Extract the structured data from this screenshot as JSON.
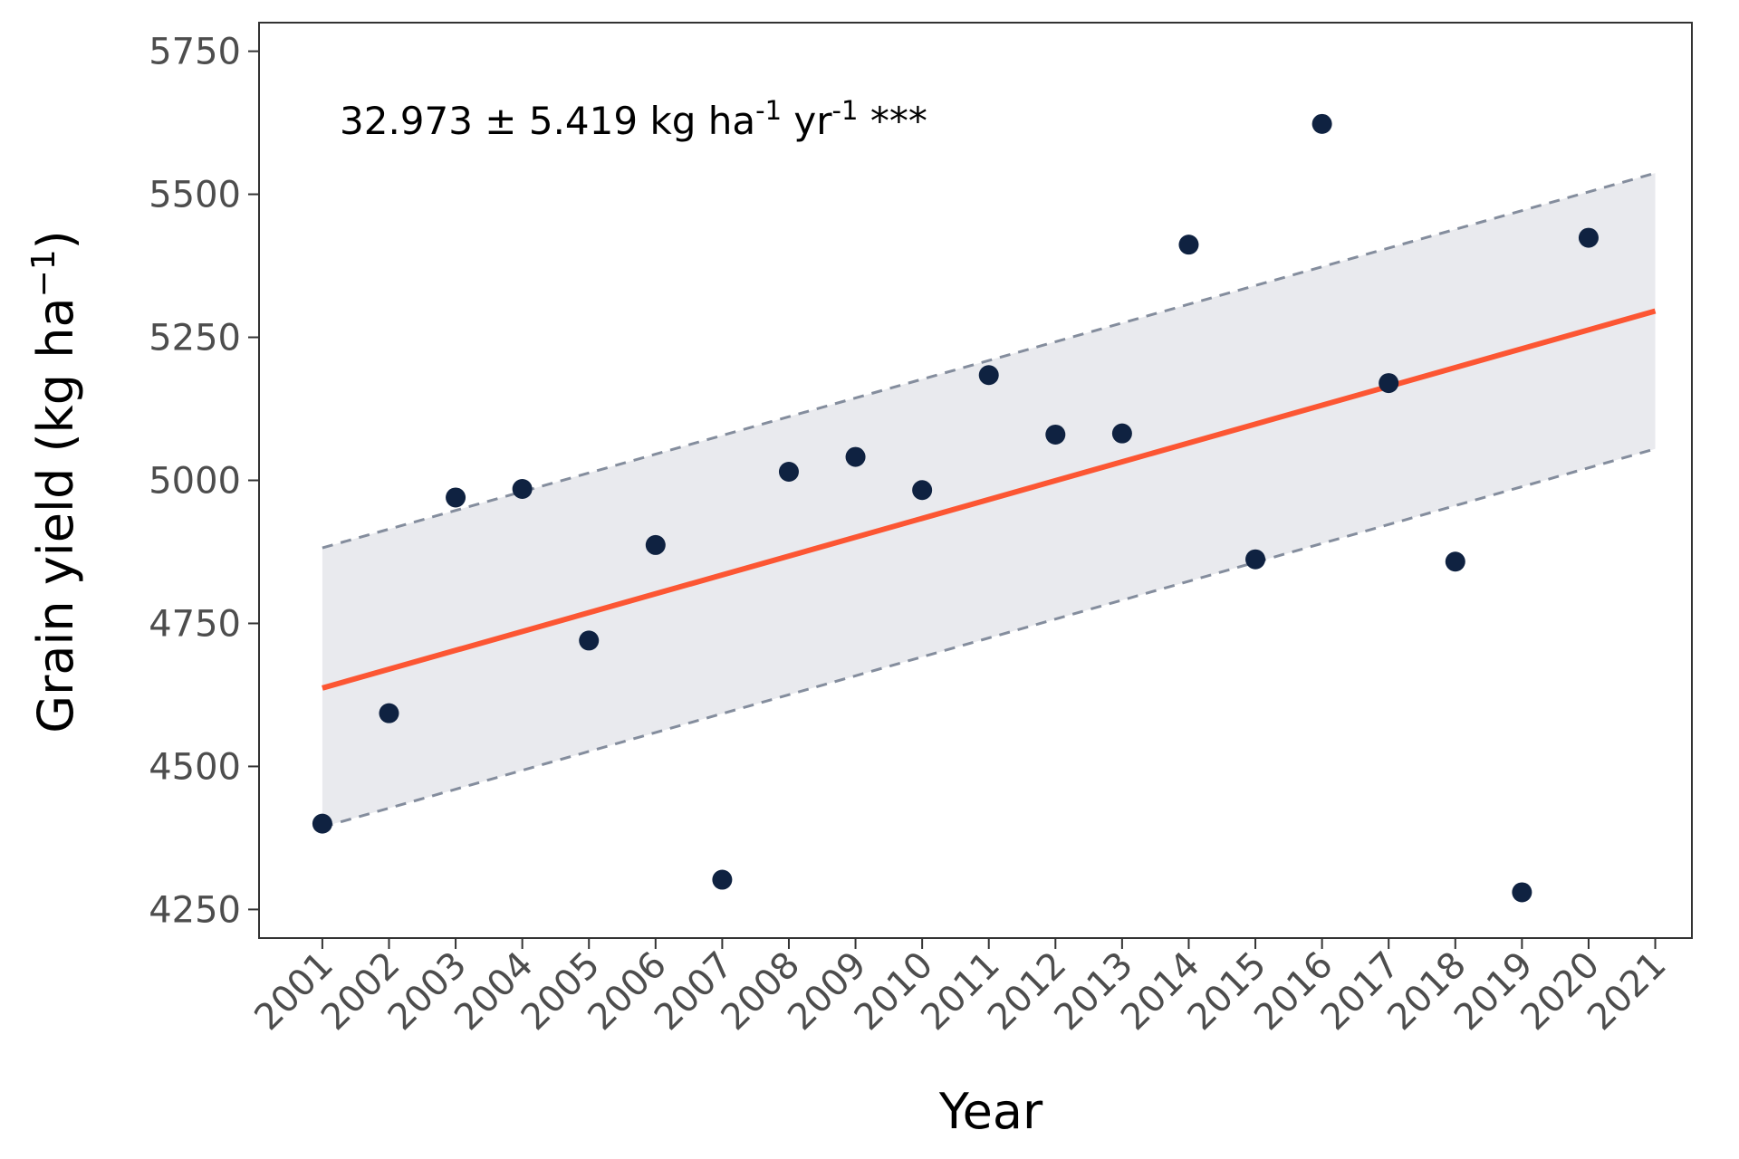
{
  "chart_data": {
    "type": "scatter",
    "xlabel": "Year",
    "ylabel_main": "Grain yield (kg ha",
    "ylabel_sup": "−1",
    "ylabel_close": ")",
    "annotation": {
      "text_1": "32.973 ± 5.419 kg ha",
      "sup_1": "-1",
      "text_2": " yr",
      "sup_2": "-1",
      "text_3": " ***"
    },
    "x_ticks": [
      "2001",
      "2002",
      "2003",
      "2004",
      "2005",
      "2006",
      "2007",
      "2008",
      "2009",
      "2010",
      "2011",
      "2012",
      "2013",
      "2014",
      "2015",
      "2016",
      "2017",
      "2018",
      "2019",
      "2020",
      "2021"
    ],
    "y_ticks": [
      4250,
      4500,
      4750,
      5000,
      5250,
      5500,
      5750
    ],
    "xlim": [
      2000.05,
      2021.55
    ],
    "ylim": [
      4200,
      5800
    ],
    "series": [
      {
        "type": "scatter",
        "x": [
          2001,
          2002,
          2003,
          2004,
          2005,
          2006,
          2007,
          2008,
          2009,
          2010,
          2011,
          2012,
          2013,
          2014,
          2015,
          2016,
          2017,
          2018,
          2019,
          2020
        ],
        "y": [
          4400,
          4593,
          4970,
          4985,
          4720,
          4887,
          4302,
          5015,
          5041,
          4983,
          5184,
          5080,
          5082,
          5412,
          4862,
          5623,
          5170,
          4858,
          4280,
          5424
        ]
      }
    ],
    "trend_line": {
      "x": [
        2001,
        2021
      ],
      "y": [
        4637,
        5296
      ]
    },
    "confidence_band": {
      "x": [
        2001,
        2021
      ],
      "upper": [
        4882,
        5537
      ],
      "lower": [
        4394,
        5055
      ]
    },
    "colors": {
      "points": "#0f2241",
      "trend": "#fc5633",
      "band_fill": "#e9eaee",
      "band_edge": "#848d9d",
      "axis": "#333333",
      "tick_text": "#4d4d4d"
    },
    "grid": false
  }
}
